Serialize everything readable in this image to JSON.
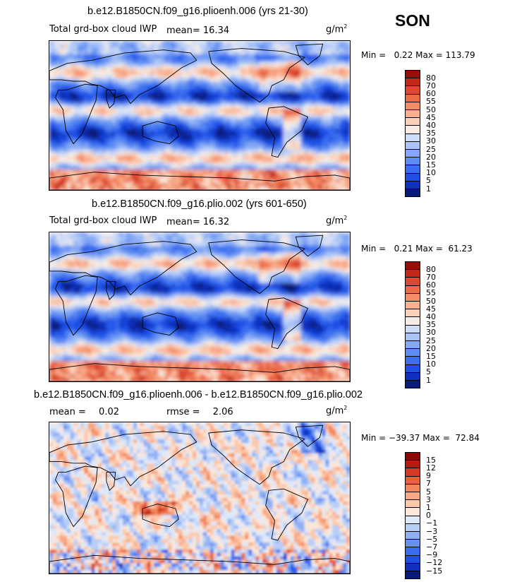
{
  "season": "SON",
  "palettes": {
    "abs": [
      "#0a1a78",
      "#1030c0",
      "#1e50e6",
      "#3a6ef0",
      "#5c8cf2",
      "#84a8f4",
      "#aac4f6",
      "#cddcf8",
      "#f6ece4",
      "#fcd0b8",
      "#f8b090",
      "#f48c66",
      "#ec6a46",
      "#dc4830",
      "#c42818",
      "#9a0c08"
    ],
    "diff": [
      "#0a1a78",
      "#1030c0",
      "#1e50e6",
      "#3a6ef0",
      "#6690f2",
      "#90b0f4",
      "#b8cef6",
      "#dde8fa",
      "#fbe6da",
      "#fcc8aa",
      "#f8a882",
      "#f2865c",
      "#e8603c",
      "#d43a24",
      "#b81a10",
      "#900404"
    ]
  },
  "panels": [
    {
      "title": "b.e12.B1850CN.f09_g16.plioenh.006 (yrs 21-30)",
      "variable": "Total grd-box cloud IWP",
      "stat1_label": "mean=",
      "stat1_value": "16.34",
      "units": "g/m",
      "units_exp": "2",
      "minmax": "Min =   0.22 Max = 113.79",
      "palette": "abs",
      "levels": [
        "80",
        "70",
        "60",
        "55",
        "50",
        "45",
        "40",
        "35",
        "30",
        "25",
        "20",
        "15",
        "10",
        "5",
        "1"
      ]
    },
    {
      "title": "b.e12.B1850CN.f09_g16.plio.002 (yrs 601-650)",
      "variable": "Total grd-box cloud IWP",
      "stat1_label": "mean=",
      "stat1_value": "16.32",
      "units": "g/m",
      "units_exp": "2",
      "minmax": "Min =   0.21 Max =  61.23",
      "palette": "abs",
      "levels": [
        "80",
        "70",
        "60",
        "55",
        "50",
        "45",
        "40",
        "35",
        "30",
        "25",
        "20",
        "15",
        "10",
        "5",
        "1"
      ]
    },
    {
      "title": "b.e12.B1850CN.f09_g16.plioenh.006 - b.e12.B1850CN.f09_g16.plio.002",
      "stat1_label": "mean =",
      "stat1_value": "0.02",
      "stat2_label": "rmse =",
      "stat2_value": "2.06",
      "units": "g/m",
      "units_exp": "2",
      "minmax": "Min = −39.37 Max =  72.84",
      "palette": "diff",
      "levels": [
        "15",
        "12",
        "9",
        "7",
        "5",
        "3",
        "1",
        "0",
        "−1",
        "−3",
        "−5",
        "−7",
        "−9",
        "−12",
        "−15"
      ]
    }
  ]
}
